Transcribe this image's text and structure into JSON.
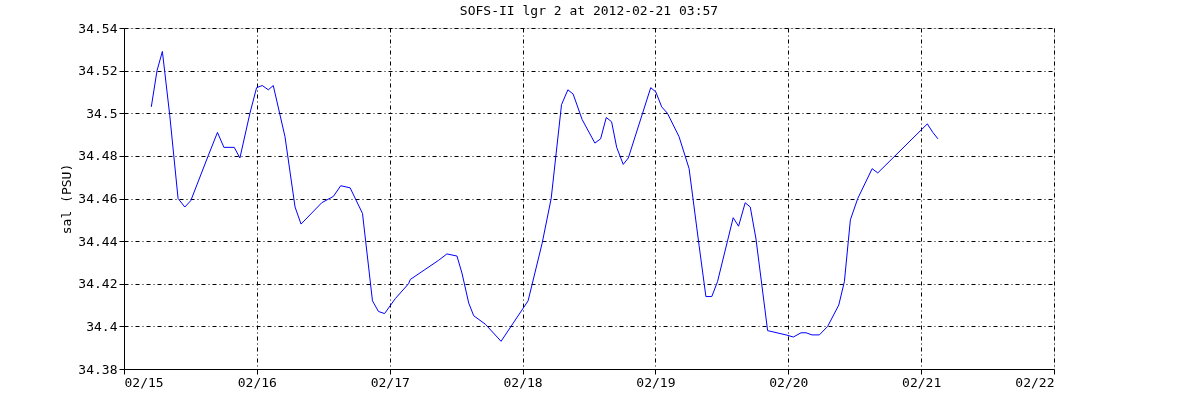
{
  "chart_data": {
    "type": "line",
    "title": "SOFS-II lgr 2 at 2012-02-21 03:57",
    "ylabel": "sal (PSU)",
    "x": [
      "2012-02-15T04:56",
      "2012-02-15T05:58",
      "2012-02-15T06:56",
      "2012-02-15T08:16",
      "2012-02-15T09:46",
      "2012-02-15T10:59",
      "2012-02-15T12:04",
      "2012-02-15T15:12",
      "2012-02-15T16:53",
      "2012-02-15T18:03",
      "2012-02-15T19:55",
      "2012-02-15T20:56",
      "2012-02-15T22:45",
      "2012-02-15T23:57",
      "2012-02-16T00:59",
      "2012-02-16T02:04",
      "2012-02-16T02:58",
      "2012-02-16T05:05",
      "2012-02-16T06:54",
      "2012-02-16T07:59",
      "2012-02-16T11:43",
      "2012-02-16T13:50",
      "2012-02-16T15:09",
      "2012-02-16T16:51",
      "2012-02-16T19:05",
      "2012-02-16T20:53",
      "2012-02-16T21:58",
      "2012-02-16T23:04",
      "2012-02-17T01:00",
      "2012-02-17T03:24",
      "2012-02-17T03:43",
      "2012-02-17T08:50",
      "2012-02-17T10:20",
      "2012-02-17T12:09",
      "2012-02-17T13:03",
      "2012-02-17T14:16",
      "2012-02-17T15:10",
      "2012-02-17T17:17",
      "2012-02-17T20:07",
      "2012-02-18T01:00",
      "2012-02-18T03:32",
      "2012-02-18T05:10",
      "2012-02-18T07:02",
      "2012-02-18T08:11",
      "2012-02-18T09:08",
      "2012-02-18T10:46",
      "2012-02-18T13:04",
      "2012-02-18T14:06",
      "2012-02-18T15:07",
      "2012-02-18T16:05",
      "2012-02-18T17:00",
      "2012-02-18T18:11",
      "2012-02-18T19:06",
      "2012-02-18T23:09",
      "2012-02-19T00:04",
      "2012-02-19T01:08",
      "2012-02-19T02:10",
      "2012-02-19T04:16",
      "2012-02-19T06:05",
      "2012-02-19T06:59",
      "2012-02-19T07:53",
      "2012-02-19T09:07",
      "2012-02-19T10:11",
      "2012-02-19T11:13",
      "2012-02-19T14:03",
      "2012-02-19T15:01",
      "2012-02-19T16:13",
      "2012-02-19T17:08",
      "2012-02-19T18:10",
      "2012-02-19T20:16",
      "2012-02-19T23:35",
      "2012-02-20T00:55",
      "2012-02-20T02:18",
      "2012-02-20T03:13",
      "2012-02-20T04:17",
      "2012-02-20T05:37",
      "2012-02-20T07:07",
      "2012-02-20T09:07",
      "2012-02-20T10:08",
      "2012-02-20T11:13",
      "2012-02-20T12:33",
      "2012-02-20T15:09",
      "2012-02-20T16:10",
      "2012-02-21T01:07",
      "2012-02-21T02:07",
      "2012-02-21T03:02"
    ],
    "series": [
      {
        "color": "#0000ff",
        "values": [
          34.503,
          34.52,
          34.529,
          34.499,
          34.46,
          34.456,
          34.459,
          34.48,
          34.491,
          34.484,
          34.484,
          34.479,
          34.5,
          34.512,
          34.513,
          34.511,
          34.513,
          34.489,
          34.456,
          34.448,
          34.458,
          34.461,
          34.466,
          34.465,
          34.453,
          34.412,
          34.407,
          34.406,
          34.413,
          34.42,
          34.422,
          34.431,
          34.434,
          34.433,
          34.425,
          34.411,
          34.405,
          34.401,
          34.393,
          34.412,
          34.439,
          34.46,
          34.504,
          34.511,
          34.509,
          34.497,
          34.486,
          34.488,
          34.498,
          34.496,
          34.484,
          34.476,
          34.479,
          34.512,
          34.51,
          34.503,
          34.5,
          34.489,
          34.474,
          34.456,
          34.438,
          34.414,
          34.414,
          34.421,
          34.451,
          34.447,
          34.458,
          34.456,
          34.441,
          34.398,
          34.396,
          34.395,
          34.397,
          34.397,
          34.396,
          34.396,
          34.4,
          34.41,
          34.421,
          34.45,
          34.46,
          34.474,
          34.472,
          34.495,
          34.491,
          34.488
        ]
      }
    ],
    "xlim": [
      "2012-02-15",
      "2012-02-22"
    ],
    "xticks": [
      {
        "value": "2012-02-15",
        "label": "02/15"
      },
      {
        "value": "2012-02-16",
        "label": "02/16"
      },
      {
        "value": "2012-02-17",
        "label": "02/17"
      },
      {
        "value": "2012-02-18",
        "label": "02/18"
      },
      {
        "value": "2012-02-19",
        "label": "02/19"
      },
      {
        "value": "2012-02-20",
        "label": "02/20"
      },
      {
        "value": "2012-02-21",
        "label": "02/21"
      },
      {
        "value": "2012-02-22",
        "label": "02/22"
      }
    ],
    "ylim": [
      34.38,
      34.54
    ],
    "yticks": [
      34.38,
      34.4,
      34.42,
      34.44,
      34.46,
      34.48,
      34.5,
      34.52,
      34.54
    ],
    "grid": true,
    "legend": false,
    "marker": "none",
    "line_style": "solid"
  }
}
